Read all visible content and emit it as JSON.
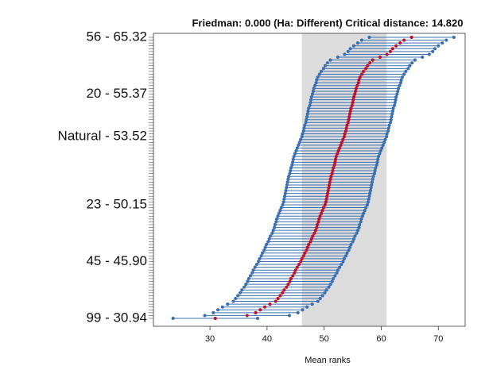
{
  "chart_data": {
    "type": "rank-interval",
    "title": "Friedman: 0.000 (Ha: Different) Critical distance: 14.820",
    "x_label": "Mean ranks",
    "critical_distance": 14.82,
    "highlight_range": [
      46.1,
      60.95
    ],
    "xlim": [
      20.1,
      74.7
    ],
    "xticks": [
      30,
      40,
      50,
      60,
      70
    ],
    "interval_color": "#3a6fb0",
    "center_color": "#c0102a",
    "highlight_color": "#dcdcdc",
    "categories": [
      "56 - 65.32",
      null,
      null,
      null,
      null,
      null,
      null,
      null,
      null,
      null,
      null,
      null,
      null,
      null,
      null,
      null,
      null,
      null,
      null,
      null,
      "20 - 55.37",
      null,
      null,
      null,
      null,
      null,
      null,
      null,
      null,
      null,
      null,
      null,
      null,
      null,
      null,
      "Natural - 53.52",
      null,
      null,
      null,
      null,
      null,
      null,
      null,
      null,
      null,
      null,
      null,
      null,
      null,
      null,
      null,
      null,
      null,
      null,
      null,
      null,
      null,
      null,
      null,
      "23 - 50.15",
      null,
      null,
      null,
      null,
      null,
      null,
      null,
      null,
      null,
      null,
      null,
      null,
      null,
      null,
      null,
      null,
      null,
      null,
      null,
      "45 - 45.90",
      null,
      null,
      null,
      null,
      null,
      null,
      null,
      null,
      null,
      null,
      null,
      null,
      null,
      null,
      null,
      null,
      null,
      null,
      null,
      "99 - 30.94"
    ],
    "values": [
      65.32,
      64.0,
      63.3,
      62.6,
      62.0,
      61.6,
      61.0,
      59.8,
      58.5,
      58.0,
      57.6,
      57.3,
      56.9,
      56.6,
      56.3,
      56.1,
      56.0,
      55.8,
      55.6,
      55.5,
      55.37,
      55.2,
      55.1,
      55.0,
      54.9,
      54.7,
      54.6,
      54.5,
      54.4,
      54.3,
      54.2,
      54.0,
      53.9,
      53.8,
      53.6,
      53.52,
      53.3,
      53.1,
      52.9,
      52.7,
      52.5,
      52.3,
      52.1,
      52.0,
      51.9,
      51.8,
      51.6,
      51.5,
      51.4,
      51.2,
      51.1,
      51.0,
      50.9,
      50.8,
      50.7,
      50.6,
      50.5,
      50.4,
      50.3,
      50.15,
      49.9,
      49.7,
      49.5,
      49.3,
      49.1,
      49.0,
      48.8,
      48.7,
      48.5,
      48.3,
      48.0,
      47.8,
      47.6,
      47.3,
      47.1,
      46.9,
      46.6,
      46.4,
      46.1,
      45.9,
      45.6,
      45.3,
      45.0,
      44.8,
      44.5,
      44.2,
      44.0,
      43.7,
      43.4,
      43.0,
      42.7,
      42.3,
      41.9,
      41.5,
      40.5,
      39.6,
      38.8,
      38.0,
      36.5,
      30.94
    ]
  }
}
